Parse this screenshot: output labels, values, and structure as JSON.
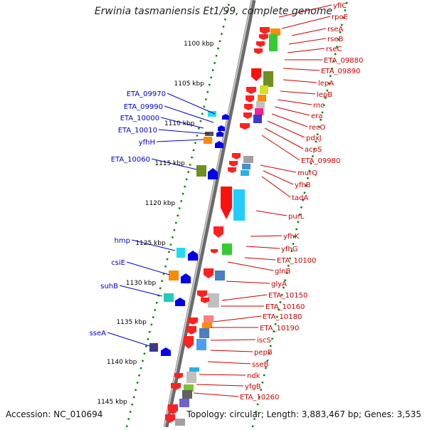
{
  "title": "Erwinia tasmaniensis Et1/99, complete genome",
  "accession": "Accession: NC_010694",
  "topology": "Topology: circular; Length: 3,883,467 bp; Genes: 3,535",
  "colors": {
    "forward_label": "#cc0000",
    "reverse_label": "#0000cc",
    "backbone": "#888888",
    "scale": "#007700"
  },
  "kbp_ticks": [
    "1100 kbp",
    "1105 kbp",
    "1110 kbp",
    "1115 kbp",
    "1120 kbp",
    "1125 kbp",
    "1130 kbp",
    "1135 kbp",
    "1140 kbp",
    "1145 kbp"
  ],
  "forward_genes": [
    "yfiC",
    "rpoE",
    "rseA",
    "rseB",
    "rseC",
    "ETA_09880",
    "ETA_09890",
    "lepA",
    "lepB",
    "rnc",
    "era",
    "recO",
    "pdxJ",
    "acpS",
    "ETA_09980",
    "murQ",
    "yfhB",
    "tadA",
    "purL",
    "yfhK",
    "yfhG",
    "ETA_10100",
    "glnB",
    "glyA",
    "ETA_10150",
    "ETA_10160",
    "ETA_10180",
    "ETA_10190",
    "iscS",
    "pepB",
    "sseB",
    "ndk",
    "yfgB",
    "ETA_10260"
  ],
  "reverse_genes": [
    "ETA_09970",
    "ETA_09990",
    "ETA_10000",
    "ETA_10010",
    "yfhH",
    "ETA_10060",
    "hmp",
    "csiE",
    "suhB",
    "sseA"
  ]
}
